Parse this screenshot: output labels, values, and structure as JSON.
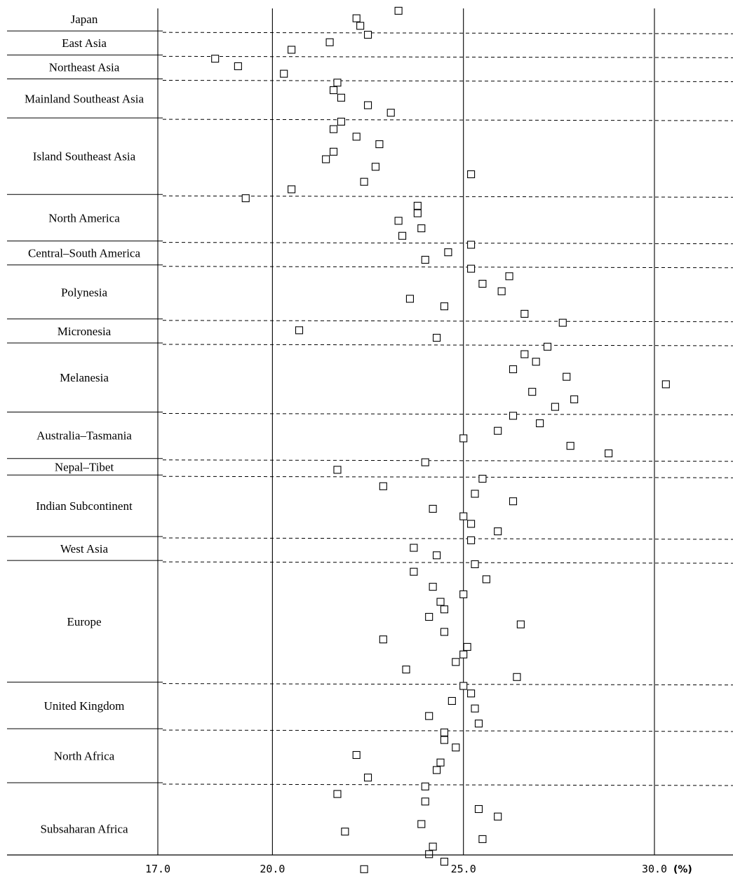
{
  "chart_data": {
    "type": "scatter",
    "title": "",
    "xlabel": "",
    "ylabel": "",
    "unit_label": "(%)",
    "xlim": [
      17.0,
      32.5
    ],
    "x_ticks": [
      17.0,
      20.0,
      25.0,
      30.0
    ],
    "x_tick_labels": [
      "17.0",
      "20.0",
      "25.0",
      "30.0"
    ],
    "marker": "open-square",
    "grid": "vertical lines at 20.0, 25.0 and 30.0; dashed horizontal separators between groups",
    "groups": [
      {
        "name": "Japan",
        "values": [
          23.3,
          22.2,
          22.3
        ]
      },
      {
        "name": "East Asia",
        "values": [
          22.5,
          21.5,
          20.5
        ]
      },
      {
        "name": "Northeast Asia",
        "values": [
          18.5,
          19.1,
          20.3
        ]
      },
      {
        "name": "Mainland Southeast Asia",
        "values": [
          21.7,
          21.6,
          21.8,
          22.5,
          23.1
        ]
      },
      {
        "name": "Island Southeast Asia",
        "values": [
          21.8,
          21.6,
          22.2,
          22.8,
          21.6,
          21.4,
          22.7,
          25.2,
          22.4,
          20.5
        ]
      },
      {
        "name": "North America",
        "values": [
          19.3,
          23.8,
          23.8,
          23.3,
          23.9,
          23.4
        ]
      },
      {
        "name": "Central–South America",
        "values": [
          25.2,
          24.6,
          24.0
        ]
      },
      {
        "name": "Polynesia",
        "values": [
          25.2,
          26.2,
          25.5,
          26.0,
          23.6,
          24.5,
          26.6
        ]
      },
      {
        "name": "Micronesia",
        "values": [
          27.6,
          20.7,
          24.3
        ]
      },
      {
        "name": "Melanesia",
        "values": [
          27.2,
          26.6,
          26.9,
          26.3,
          27.7,
          30.3,
          26.8,
          27.9,
          27.4
        ]
      },
      {
        "name": "Australia–Tasmania",
        "values": [
          26.3,
          27.0,
          25.9,
          25.0,
          27.8,
          28.8
        ]
      },
      {
        "name": "Nepal–Tibet",
        "values": [
          24.0,
          21.7
        ]
      },
      {
        "name": "Indian Subcontinent",
        "values": [
          25.5,
          22.9,
          25.3,
          26.3,
          24.2,
          25.0,
          25.2,
          25.9
        ]
      },
      {
        "name": "West Asia",
        "values": [
          25.2,
          23.7,
          24.3
        ]
      },
      {
        "name": "Europe",
        "values": [
          25.3,
          23.7,
          25.6,
          24.2,
          25.0,
          24.4,
          24.5,
          24.1,
          26.5,
          24.5,
          22.9,
          25.1,
          25.0,
          24.8,
          23.5,
          26.4
        ]
      },
      {
        "name": "United Kingdom",
        "values": [
          25.0,
          25.2,
          24.7,
          25.3,
          24.1,
          25.4
        ]
      },
      {
        "name": "North Africa",
        "values": [
          24.5,
          24.5,
          24.8,
          22.2,
          24.4,
          24.3,
          22.5
        ]
      },
      {
        "name": "Subsaharan Africa",
        "values": [
          24.0,
          21.7,
          24.0,
          25.4,
          25.9,
          23.9,
          21.9,
          25.5,
          24.2,
          24.1,
          24.5,
          22.4
        ]
      }
    ]
  }
}
